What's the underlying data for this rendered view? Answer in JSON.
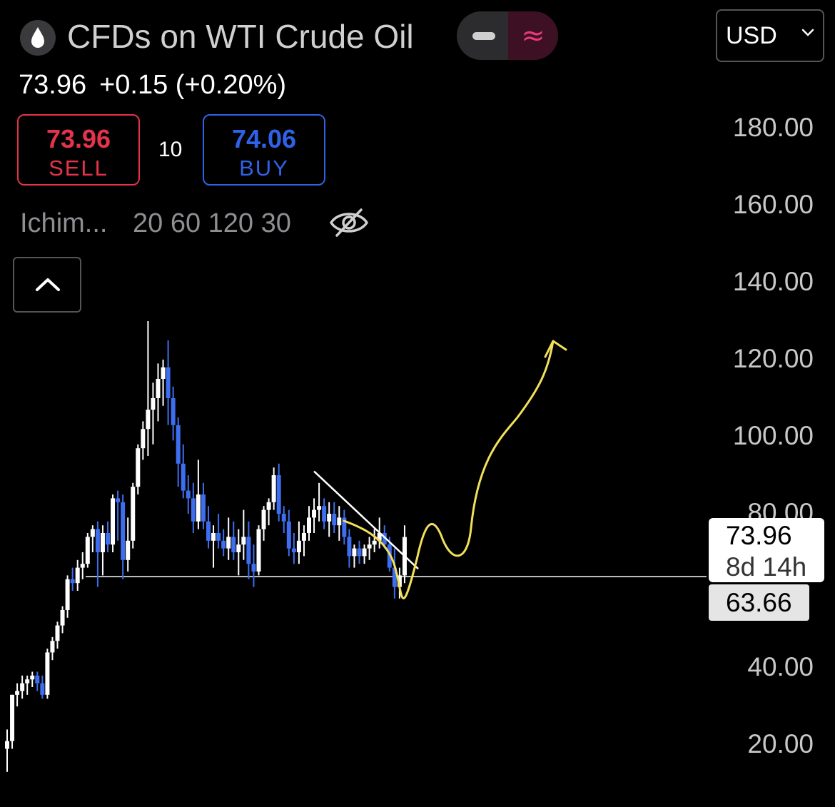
{
  "header": {
    "instrument_icon": "oil-drop-icon",
    "title": "CFDs on WTI Crude Oil",
    "toggle": {
      "left_icon": "minus-icon",
      "right_icon": "approx-wave-icon",
      "right_glyph": "≈",
      "accent": "#e6397a"
    },
    "currency": {
      "value": "USD",
      "icon": "chevron-down-icon"
    }
  },
  "quote": {
    "last": "73.96",
    "change": "+0.15 (+0.20%)"
  },
  "trade": {
    "sell": {
      "price": "73.96",
      "label": "SELL",
      "color": "#e4334a"
    },
    "spread": "10",
    "buy": {
      "price": "74.06",
      "label": "BUY",
      "color": "#2f62e8"
    }
  },
  "indicator": {
    "name": "Ichim...",
    "params": "20 60 120 30",
    "visibility_icon": "eye-off-icon"
  },
  "collapse": {
    "icon": "chevron-up-icon"
  },
  "price_label": {
    "value": "73.96",
    "countdown": "8d 14h"
  },
  "level_label": {
    "value": "63.66"
  },
  "chart_data": {
    "type": "candlestick",
    "y_axis": {
      "ticks": [
        "180.00",
        "160.00",
        "140.00",
        "120.00",
        "100.00",
        "80.00",
        "40.00",
        "20.00"
      ],
      "range": [
        10,
        190
      ],
      "position": "right"
    },
    "colors": {
      "up": "#ffffff",
      "down": "#3d6ef0",
      "annotation": "#f2e05a",
      "level_line": "#ffffff"
    },
    "candles": [
      {
        "o": 19,
        "h": 24,
        "l": 13,
        "c": 21
      },
      {
        "o": 21,
        "h": 33,
        "l": 19,
        "c": 33
      },
      {
        "o": 33,
        "h": 36,
        "l": 30,
        "c": 34
      },
      {
        "o": 34,
        "h": 38,
        "l": 32,
        "c": 36
      },
      {
        "o": 36,
        "h": 38,
        "l": 33,
        "c": 37
      },
      {
        "o": 37,
        "h": 39,
        "l": 35,
        "c": 38
      },
      {
        "o": 38,
        "h": 39,
        "l": 34,
        "c": 36
      },
      {
        "o": 36,
        "h": 38,
        "l": 32,
        "c": 33
      },
      {
        "o": 33,
        "h": 45,
        "l": 32,
        "c": 44
      },
      {
        "o": 44,
        "h": 48,
        "l": 42,
        "c": 47
      },
      {
        "o": 47,
        "h": 52,
        "l": 45,
        "c": 51
      },
      {
        "o": 51,
        "h": 56,
        "l": 49,
        "c": 55
      },
      {
        "o": 55,
        "h": 64,
        "l": 53,
        "c": 63
      },
      {
        "o": 63,
        "h": 66,
        "l": 60,
        "c": 62
      },
      {
        "o": 62,
        "h": 68,
        "l": 60,
        "c": 66
      },
      {
        "o": 66,
        "h": 70,
        "l": 63,
        "c": 67
      },
      {
        "o": 67,
        "h": 75,
        "l": 66,
        "c": 74
      },
      {
        "o": 74,
        "h": 77,
        "l": 70,
        "c": 76
      },
      {
        "o": 76,
        "h": 78,
        "l": 61,
        "c": 70
      },
      {
        "o": 70,
        "h": 77,
        "l": 64,
        "c": 75
      },
      {
        "o": 75,
        "h": 78,
        "l": 70,
        "c": 72
      },
      {
        "o": 72,
        "h": 85,
        "l": 70,
        "c": 84
      },
      {
        "o": 84,
        "h": 86,
        "l": 73,
        "c": 83
      },
      {
        "o": 83,
        "h": 85,
        "l": 63,
        "c": 68
      },
      {
        "o": 68,
        "h": 79,
        "l": 65,
        "c": 73
      },
      {
        "o": 73,
        "h": 88,
        "l": 71,
        "c": 87
      },
      {
        "o": 87,
        "h": 98,
        "l": 85,
        "c": 97
      },
      {
        "o": 97,
        "h": 104,
        "l": 94,
        "c": 102
      },
      {
        "o": 102,
        "h": 130,
        "l": 95,
        "c": 107
      },
      {
        "o": 107,
        "h": 114,
        "l": 98,
        "c": 110
      },
      {
        "o": 110,
        "h": 119,
        "l": 104,
        "c": 115
      },
      {
        "o": 115,
        "h": 120,
        "l": 108,
        "c": 118
      },
      {
        "o": 118,
        "h": 125,
        "l": 103,
        "c": 110
      },
      {
        "o": 110,
        "h": 113,
        "l": 99,
        "c": 103
      },
      {
        "o": 103,
        "h": 105,
        "l": 87,
        "c": 93
      },
      {
        "o": 93,
        "h": 98,
        "l": 84,
        "c": 86
      },
      {
        "o": 86,
        "h": 90,
        "l": 80,
        "c": 84
      },
      {
        "o": 84,
        "h": 88,
        "l": 75,
        "c": 78
      },
      {
        "o": 78,
        "h": 94,
        "l": 76,
        "c": 85
      },
      {
        "o": 85,
        "h": 88,
        "l": 76,
        "c": 78
      },
      {
        "o": 78,
        "h": 82,
        "l": 71,
        "c": 73
      },
      {
        "o": 73,
        "h": 77,
        "l": 66,
        "c": 75
      },
      {
        "o": 75,
        "h": 80,
        "l": 71,
        "c": 73
      },
      {
        "o": 73,
        "h": 76,
        "l": 69,
        "c": 71
      },
      {
        "o": 71,
        "h": 79,
        "l": 68,
        "c": 74
      },
      {
        "o": 74,
        "h": 78,
        "l": 68,
        "c": 70
      },
      {
        "o": 70,
        "h": 76,
        "l": 64,
        "c": 72
      },
      {
        "o": 72,
        "h": 81,
        "l": 68,
        "c": 74
      },
      {
        "o": 74,
        "h": 78,
        "l": 63,
        "c": 67
      },
      {
        "o": 67,
        "h": 72,
        "l": 61,
        "c": 65
      },
      {
        "o": 65,
        "h": 77,
        "l": 64,
        "c": 76
      },
      {
        "o": 76,
        "h": 82,
        "l": 73,
        "c": 81
      },
      {
        "o": 81,
        "h": 84,
        "l": 77,
        "c": 83
      },
      {
        "o": 83,
        "h": 92,
        "l": 81,
        "c": 90
      },
      {
        "o": 90,
        "h": 93,
        "l": 78,
        "c": 80
      },
      {
        "o": 80,
        "h": 82,
        "l": 75,
        "c": 78
      },
      {
        "o": 78,
        "h": 81,
        "l": 69,
        "c": 71
      },
      {
        "o": 71,
        "h": 75,
        "l": 67,
        "c": 70
      },
      {
        "o": 70,
        "h": 78,
        "l": 67,
        "c": 73
      },
      {
        "o": 73,
        "h": 77,
        "l": 69,
        "c": 75
      },
      {
        "o": 75,
        "h": 82,
        "l": 73,
        "c": 79
      },
      {
        "o": 79,
        "h": 84,
        "l": 75,
        "c": 81
      },
      {
        "o": 81,
        "h": 88,
        "l": 78,
        "c": 82
      },
      {
        "o": 82,
        "h": 84,
        "l": 76,
        "c": 78
      },
      {
        "o": 78,
        "h": 83,
        "l": 74,
        "c": 80
      },
      {
        "o": 80,
        "h": 83,
        "l": 75,
        "c": 77
      },
      {
        "o": 77,
        "h": 82,
        "l": 73,
        "c": 79
      },
      {
        "o": 79,
        "h": 81,
        "l": 72,
        "c": 74
      },
      {
        "o": 74,
        "h": 76,
        "l": 66,
        "c": 69
      },
      {
        "o": 69,
        "h": 72,
        "l": 66,
        "c": 71
      },
      {
        "o": 71,
        "h": 73,
        "l": 67,
        "c": 69
      },
      {
        "o": 69,
        "h": 72,
        "l": 67,
        "c": 71
      },
      {
        "o": 71,
        "h": 74,
        "l": 68,
        "c": 72
      },
      {
        "o": 72,
        "h": 76,
        "l": 70,
        "c": 73
      },
      {
        "o": 73,
        "h": 79,
        "l": 71,
        "c": 75
      },
      {
        "o": 75,
        "h": 77,
        "l": 71,
        "c": 72
      },
      {
        "o": 72,
        "h": 74,
        "l": 65,
        "c": 66
      },
      {
        "o": 66,
        "h": 71,
        "l": 58,
        "c": 61
      },
      {
        "o": 61,
        "h": 66,
        "l": 58,
        "c": 64
      },
      {
        "o": 64,
        "h": 77,
        "l": 62,
        "c": 73.96
      }
    ],
    "support_level": 63.66,
    "trendline": {
      "from": {
        "index": 61,
        "price": 91
      },
      "to": {
        "index": 79,
        "price": 69
      }
    },
    "annotation": "projected path: dip below support, then rally to above 120 (arrow)"
  }
}
